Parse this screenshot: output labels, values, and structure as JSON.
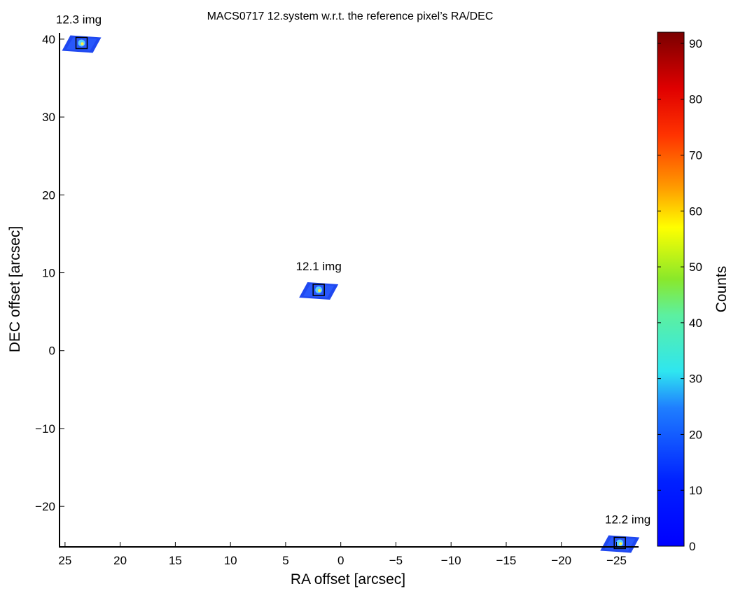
{
  "chart_data": {
    "type": "heatmap",
    "title": "MACS0717  12.system w.r.t. the reference pixel’s RA/DEC",
    "xlabel": "RA offset [arcsec]",
    "ylabel": "DEC offset [arcsec]",
    "xlim": [
      25.5,
      -27
    ],
    "ylim": [
      -25.2,
      40.8
    ],
    "x_reversed": true,
    "xticks": [
      25,
      20,
      15,
      10,
      5,
      0,
      -5,
      -10,
      -15,
      -20,
      -25
    ],
    "xtick_labels": [
      "25",
      "20",
      "15",
      "10",
      "5",
      "0",
      "−5",
      "−10",
      "−15",
      "−20",
      "−25"
    ],
    "yticks": [
      40,
      30,
      20,
      10,
      0,
      -10,
      -20
    ],
    "ytick_labels": [
      "40",
      "30",
      "20",
      "10",
      "0",
      "−10",
      "−20"
    ],
    "grid": false,
    "images": [
      {
        "label": "12.3 img",
        "x": 23.5,
        "y": 39.5
      },
      {
        "label": "12.1 img",
        "x": 2.0,
        "y": 7.8
      },
      {
        "label": "12.2 img",
        "x": -25.3,
        "y": -24.7
      }
    ],
    "colorbar": {
      "label": "Counts",
      "min": 0,
      "max": 92,
      "ticks": [
        0,
        10,
        20,
        30,
        40,
        50,
        60,
        70,
        80,
        90
      ],
      "tick_labels": [
        "0",
        "10",
        "20",
        "30",
        "40",
        "50",
        "60",
        "70",
        "80",
        "90"
      ],
      "colormap": "jet"
    }
  }
}
